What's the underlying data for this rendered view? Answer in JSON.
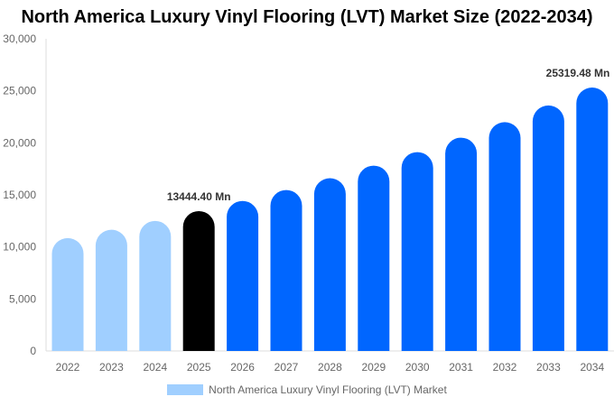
{
  "chart_data": {
    "type": "bar",
    "title": "North America Luxury Vinyl Flooring (LVT) Market Size (2022-2034)",
    "categories": [
      "2022",
      "2023",
      "2024",
      "2025",
      "2026",
      "2027",
      "2028",
      "2029",
      "2030",
      "2031",
      "2032",
      "2033",
      "2034"
    ],
    "series": [
      {
        "name": "North America Luxury Vinyl Flooring (LVT) Market",
        "values": [
          10850,
          11650,
          12500,
          13444.4,
          14420,
          15470,
          16600,
          17810,
          19110,
          20500,
          21990,
          23590,
          25319.48
        ]
      }
    ],
    "ylim": [
      0,
      30000
    ],
    "yticks": [
      "0",
      "5,000",
      "10,000",
      "15,000",
      "20,000",
      "25,000",
      "30,000"
    ],
    "annotations": [
      {
        "category": "2025",
        "text": "13444.40 Mn"
      },
      {
        "category": "2034",
        "text": "25319.48 Mn"
      }
    ],
    "colors": {
      "historical": "#a0cfff",
      "current": "#000000",
      "forecast": "#0066ff"
    },
    "grid": false,
    "legend": "bottom"
  }
}
